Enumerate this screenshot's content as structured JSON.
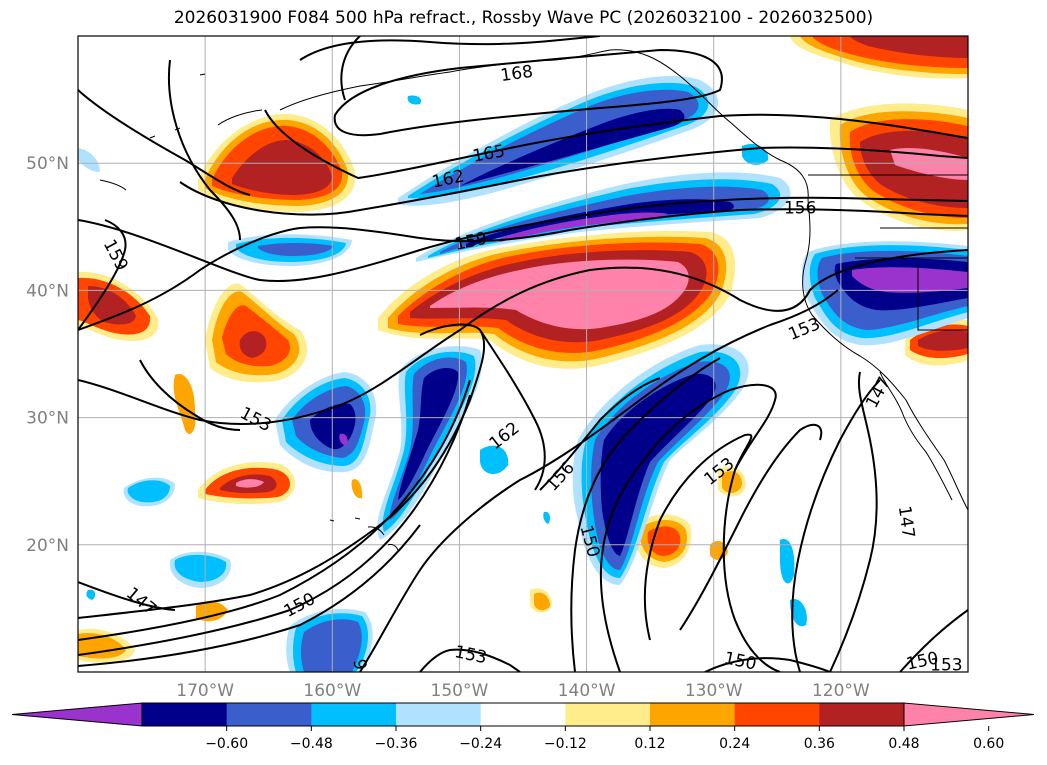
{
  "title": "2026031900 F084 500 hPa refract., Rossby Wave PC (2026032100 - 2026032500)",
  "map": {
    "extent": {
      "lon_min": -180,
      "lon_max": -110,
      "lat_min": 10,
      "lat_max": 60
    },
    "lat_ticks": [
      {
        "value": 20,
        "label": "20°N"
      },
      {
        "value": 30,
        "label": "30°N"
      },
      {
        "value": 40,
        "label": "40°N"
      },
      {
        "value": 50,
        "label": "50°N"
      }
    ],
    "lon_ticks": [
      {
        "value": -170,
        "label": "170°W"
      },
      {
        "value": -160,
        "label": "160°W"
      },
      {
        "value": -150,
        "label": "150°W"
      },
      {
        "value": -140,
        "label": "140°W"
      },
      {
        "value": -130,
        "label": "130°W"
      },
      {
        "value": -120,
        "label": "120°W"
      }
    ],
    "contour_labels": [
      {
        "text": "168",
        "lon": -145.5,
        "lat": 57.1,
        "rot": -8
      },
      {
        "text": "165",
        "lon": -147.7,
        "lat": 50.8,
        "rot": -10
      },
      {
        "text": "162",
        "lon": -150.9,
        "lat": 48.8,
        "rot": -12
      },
      {
        "text": "159",
        "lon": -149.1,
        "lat": 43.9,
        "rot": -12
      },
      {
        "text": "156",
        "lon": -123.2,
        "lat": 46.5,
        "rot": 0
      },
      {
        "text": "159",
        "lon": -177.0,
        "lat": 42.8,
        "rot": 62
      },
      {
        "text": "153",
        "lon": -122.9,
        "lat": 37.0,
        "rot": -22
      },
      {
        "text": "153",
        "lon": -166.0,
        "lat": 29.9,
        "rot": 28
      },
      {
        "text": "162",
        "lon": -146.5,
        "lat": 28.6,
        "rot": -38
      },
      {
        "text": "156",
        "lon": -142.1,
        "lat": 25.4,
        "rot": -48
      },
      {
        "text": "153",
        "lon": -129.6,
        "lat": 25.8,
        "rot": -38
      },
      {
        "text": "150",
        "lon": -139.7,
        "lat": 20.3,
        "rot": 75
      },
      {
        "text": "147",
        "lon": -117.1,
        "lat": 32.0,
        "rot": -62
      },
      {
        "text": "147",
        "lon": -114.8,
        "lat": 21.8,
        "rot": 82
      },
      {
        "text": "147",
        "lon": -175.0,
        "lat": 15.6,
        "rot": 40
      },
      {
        "text": "150",
        "lon": -162.6,
        "lat": 15.3,
        "rot": -28
      },
      {
        "text": "153",
        "lon": -149.1,
        "lat": 11.4,
        "rot": 12
      },
      {
        "text": "150",
        "lon": -127.9,
        "lat": 10.9,
        "rot": 12
      },
      {
        "text": "150",
        "lon": -113.6,
        "lat": 10.9,
        "rot": -12
      },
      {
        "text": "153",
        "lon": -111.7,
        "lat": 10.6,
        "rot": 0
      },
      {
        "text": "9",
        "lon": -157.8,
        "lat": 10.6,
        "rot": 80
      }
    ]
  },
  "colorbar": {
    "levels": [
      -0.72,
      -0.6,
      -0.48,
      -0.36,
      -0.24,
      -0.12,
      0.12,
      0.24,
      0.36,
      0.48,
      0.6,
      0.72
    ],
    "colors": [
      "#9a32cd",
      "#00008b",
      "#3a5fcd",
      "#00bfff",
      "#b0e2ff",
      "#ffffff",
      "#ffec8b",
      "#ffa500",
      "#ff4500",
      "#b22222",
      "#ff82ab"
    ],
    "tick_labels": [
      "-0.60",
      "-0.48",
      "-0.36",
      "-0.24",
      "-0.12",
      "0.12",
      "0.24",
      "0.36",
      "0.48",
      "0.60"
    ],
    "extend": "both"
  },
  "field_colors": {
    "neg_060": "#9a32cd",
    "neg_048": "#00008b",
    "neg_036": "#3a5fcd",
    "neg_024": "#00bfff",
    "neg_012": "#b0e2ff",
    "pos_012": "#ffec8b",
    "pos_024": "#ffa500",
    "pos_036": "#ff4500",
    "pos_048": "#b22222",
    "pos_060": "#ff82ab"
  }
}
